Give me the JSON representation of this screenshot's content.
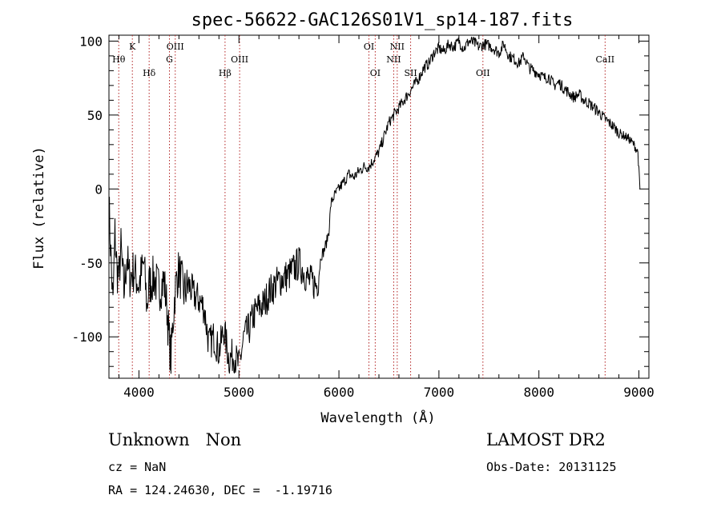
{
  "chart_data": {
    "type": "line",
    "title": "spec-56622-GAC126S01V1_sp14-187.fits",
    "xlabel": "Wavelength (Å)",
    "ylabel": "Flux (relative)",
    "xlim": [
      3700,
      9100
    ],
    "ylim": [
      -128,
      104
    ],
    "xticks": [
      4000,
      5000,
      6000,
      7000,
      8000,
      9000
    ],
    "yticks": [
      -100,
      -50,
      0,
      50,
      100
    ],
    "grid": false,
    "line_color": "#000000",
    "marker_color": "#b22222",
    "series": [
      {
        "x": [
          3700,
          3740,
          3760,
          3780,
          3800,
          3820,
          3850,
          3880,
          3900,
          3950,
          4000,
          4050,
          4080,
          4100,
          4150,
          4200,
          4250,
          4280,
          4300,
          4320,
          4340,
          4360,
          4380,
          4400,
          4450,
          4500,
          4550,
          4600,
          4650,
          4700,
          4750,
          4800,
          4850,
          4900,
          4950,
          5000,
          5050,
          5100,
          5150,
          5200,
          5250,
          5300,
          5400,
          5500,
          5600,
          5700,
          5780,
          5800,
          5820,
          5850,
          5880,
          5900,
          5920,
          5950,
          6000,
          6050,
          6100,
          6150,
          6200,
          6250,
          6300,
          6350,
          6400,
          6450,
          6500,
          6550,
          6600,
          6650,
          6700,
          6750,
          6800,
          6850,
          6900,
          6950,
          7000,
          7050,
          7100,
          7150,
          7200,
          7250,
          7300,
          7350,
          7400,
          7450,
          7500,
          7550,
          7600,
          7650,
          7700,
          7750,
          7800,
          7850,
          7900,
          7950,
          8000,
          8050,
          8100,
          8150,
          8200,
          8250,
          8300,
          8350,
          8400,
          8450,
          8500,
          8550,
          8600,
          8650,
          8700,
          8750,
          8800,
          8850,
          8900,
          8950,
          8990,
          9010
        ],
        "y": [
          -10,
          -80,
          -30,
          -55,
          -60,
          -40,
          -70,
          -45,
          -60,
          -55,
          -65,
          -50,
          -80,
          -65,
          -60,
          -68,
          -62,
          -80,
          -100,
          -115,
          -90,
          -70,
          -60,
          -55,
          -70,
          -65,
          -72,
          -75,
          -80,
          -105,
          -100,
          -110,
          -95,
          -115,
          -112,
          -120,
          -100,
          -95,
          -85,
          -80,
          -78,
          -70,
          -62,
          -58,
          -50,
          -62,
          -65,
          -58,
          -45,
          -42,
          -35,
          -28,
          -10,
          -5,
          0,
          5,
          10,
          8,
          12,
          15,
          15,
          20,
          25,
          35,
          45,
          50,
          55,
          60,
          65,
          70,
          75,
          82,
          85,
          92,
          95,
          93,
          98,
          96,
          100,
          95,
          100,
          99,
          96,
          98,
          97,
          95,
          92,
          98,
          90,
          88,
          85,
          90,
          82,
          80,
          78,
          75,
          76,
          70,
          72,
          68,
          65,
          62,
          64,
          60,
          58,
          55,
          52,
          48,
          45,
          42,
          38,
          36,
          34,
          30,
          25,
          0
        ],
        "noise": 4
      }
    ],
    "lines": [
      {
        "x": 3798,
        "label": "Hθ",
        "row": 2
      },
      {
        "x": 3934,
        "label": "K",
        "row": 1
      },
      {
        "x": 4102,
        "label": "Hδ",
        "row": 3
      },
      {
        "x": 4305,
        "label": "G",
        "row": 2
      },
      {
        "x": 4363,
        "label": "OIII",
        "row": 1
      },
      {
        "x": 4861,
        "label": "Hβ",
        "row": 3
      },
      {
        "x": 5007,
        "label": "OIII",
        "row": 2
      },
      {
        "x": 6300,
        "label": "OI",
        "row": 1
      },
      {
        "x": 6363,
        "label": "OI",
        "row": 3
      },
      {
        "x": 6548,
        "label": "NII",
        "row": 2
      },
      {
        "x": 6583,
        "label": "NII",
        "row": 1
      },
      {
        "x": 6717,
        "label": "SII",
        "row": 3
      },
      {
        "x": 7440,
        "label": "OII",
        "row": 3
      },
      {
        "x": 8662,
        "label": "CaII",
        "row": 2
      }
    ]
  },
  "info": {
    "class_text": "Unknown   Non",
    "survey": "LAMOST DR2",
    "cz": "cz = NaN",
    "obs_date": "Obs-Date: 20131125",
    "radec": "RA = 124.24630, DEC =  -1.19716"
  }
}
